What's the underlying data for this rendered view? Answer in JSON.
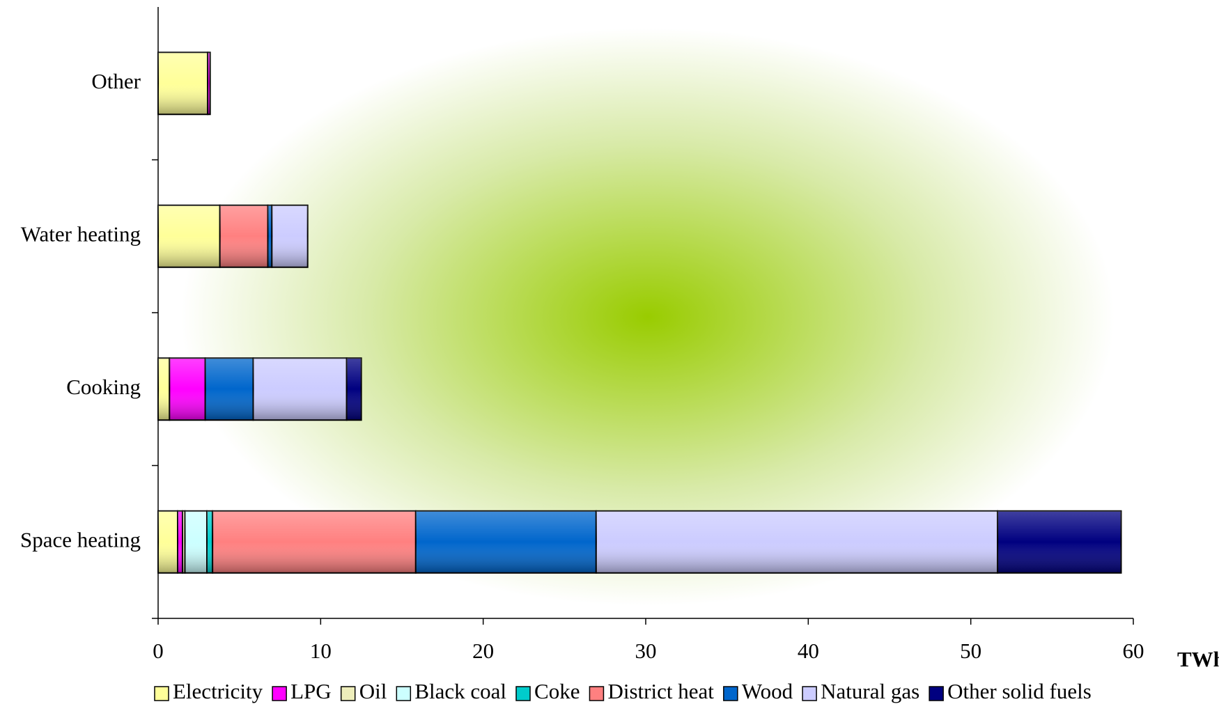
{
  "chart_data": {
    "type": "bar",
    "orientation": "horizontal",
    "stacked": true,
    "x_label": "TWh",
    "categories": [
      "Space heating",
      "Cooking",
      "Water heating",
      "Other"
    ],
    "series": [
      {
        "name": "Electricity",
        "color": "#ffff99",
        "values": [
          1.2,
          0.7,
          3.8,
          3.05
        ]
      },
      {
        "name": "LPG",
        "color": "#ff00ff",
        "values": [
          0.3,
          2.2,
          0,
          0.15
        ]
      },
      {
        "name": "Oil",
        "color": "#eeeebb",
        "values": [
          0.15,
          0,
          0,
          0
        ]
      },
      {
        "name": "Black coal",
        "color": "#ccffff",
        "values": [
          1.35,
          0,
          0,
          0
        ]
      },
      {
        "name": "Coke",
        "color": "#00cccc",
        "values": [
          0.35,
          0,
          0,
          0
        ]
      },
      {
        "name": "District heat",
        "color": "#ff8080",
        "values": [
          12.5,
          0,
          2.95,
          0
        ]
      },
      {
        "name": "Wood",
        "color": "#0066cc",
        "values": [
          11.1,
          2.95,
          0.25,
          0
        ]
      },
      {
        "name": "Natural gas",
        "color": "#ccccff",
        "values": [
          24.7,
          5.75,
          2.2,
          0
        ]
      },
      {
        "name": "Other solid fuels",
        "color": "#000080",
        "values": [
          7.6,
          0.9,
          0,
          0
        ]
      }
    ],
    "xlim": [
      0,
      60
    ],
    "xticks": [
      0,
      10,
      20,
      30,
      40,
      50,
      60
    ],
    "legend": "bottom"
  }
}
